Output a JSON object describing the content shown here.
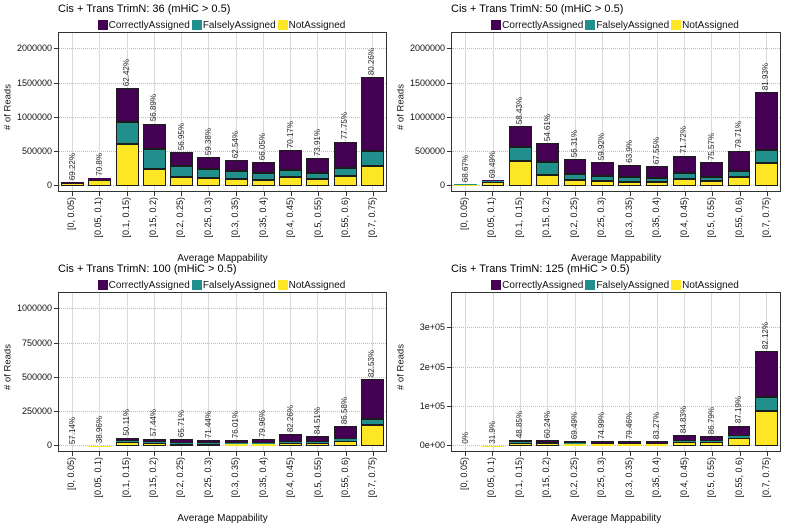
{
  "page": {
    "background": "#ffffff"
  },
  "colors": {
    "correctly_assigned": "#440154",
    "falsely_assigned": "#21908C",
    "not_assigned": "#FDE725",
    "panel_border": "#333333",
    "grid_vertical": "#d9d9d9",
    "grid_horizontal": "#bdbdbd"
  },
  "chart_data": [
    {
      "type": "bar",
      "stacked": true,
      "title": "Cis + Trans TrimN: 36 (mHiC > 0.5)",
      "xlabel": "Average Mappability",
      "ylabel": "# of Reads",
      "legend_position": "top",
      "grid": true,
      "categories": [
        "[0, 0.05)",
        "[0.05, 0.1)",
        "[0.1, 0.15)",
        "[0.15, 0.2)",
        "[0.2, 0.25)",
        "[0.25, 0.3)",
        "[0.3, 0.35)",
        "[0.35, 0.4)",
        "[0.4, 0.45)",
        "[0.5, 0.55)",
        "[0.55, 0.6)",
        "[0.7, 0.75)"
      ],
      "series": [
        {
          "name": "CorrectlyAssigned",
          "color": "#440154",
          "values": [
            6000,
            22000,
            510000,
            375000,
            210000,
            180000,
            165000,
            155000,
            290000,
            210000,
            380000,
            1085000
          ]
        },
        {
          "name": "FalselyAssigned",
          "color": "#21908C",
          "values": [
            4000,
            8000,
            315000,
            290000,
            160000,
            135000,
            115000,
            105000,
            105000,
            90000,
            120000,
            225000
          ]
        },
        {
          "name": "NotAssigned",
          "color": "#FDE725",
          "values": [
            45000,
            85000,
            615000,
            250000,
            130000,
            115000,
            100000,
            90000,
            135000,
            105000,
            150000,
            290000
          ]
        }
      ],
      "bar_labels": [
        "69.22%",
        "70.8%",
        "62.42%",
        "56.89%",
        "56.95%",
        "59.38%",
        "62.54%",
        "66.05%",
        "70.17%",
        "73.91%",
        "77.75%",
        "80.26%"
      ],
      "yticks": [
        0,
        500000,
        1000000,
        1500000,
        2000000
      ],
      "ytick_labels": [
        "0",
        "500000",
        "1000000",
        "1500000",
        "2000000"
      ],
      "ylim": [
        0,
        2240000
      ]
    },
    {
      "type": "bar",
      "stacked": true,
      "title": "Cis + Trans TrimN: 50 (mHiC > 0.5)",
      "xlabel": "Average Mappability",
      "ylabel": "# of Reads",
      "legend_position": "top",
      "grid": true,
      "categories": [
        "[0, 0.05)",
        "[0.05, 0.1)",
        "[0.1, 0.15)",
        "[0.15, 0.2)",
        "[0.2, 0.25)",
        "[0.25, 0.3)",
        "[0.3, 0.35)",
        "[0.35, 0.4)",
        "[0.4, 0.45)",
        "[0.5, 0.55)",
        "[0.55, 0.6)",
        "[0.7, 0.75)"
      ],
      "series": [
        {
          "name": "CorrectlyAssigned",
          "color": "#440154",
          "values": [
            2000,
            18000,
            305000,
            275000,
            215000,
            195000,
            178000,
            170000,
            255000,
            220000,
            305000,
            850000
          ]
        },
        {
          "name": "FalselyAssigned",
          "color": "#21908C",
          "values": [
            3000,
            7000,
            205000,
            185000,
            90000,
            80000,
            70000,
            65000,
            85000,
            67000,
            90000,
            200000
          ]
        },
        {
          "name": "NotAssigned",
          "color": "#FDE725",
          "values": [
            20000,
            65000,
            370000,
            165000,
            85000,
            70000,
            62000,
            55000,
            105000,
            68000,
            125000,
            330000
          ]
        }
      ],
      "bar_labels": [
        "68.67%",
        "69.49%",
        "58.43%",
        "54.61%",
        "56.31%",
        "59.92%",
        "63.9%",
        "67.55%",
        "71.72%",
        "75.57%",
        "79.71%",
        "81.93%"
      ],
      "yticks": [
        0,
        500000,
        1000000,
        1500000,
        2000000
      ],
      "ytick_labels": [
        "0",
        "500000",
        "1000000",
        "1500000",
        "2000000"
      ],
      "ylim": [
        0,
        2240000
      ]
    },
    {
      "type": "bar",
      "stacked": true,
      "title": "Cis + Trans TrimN: 100 (mHiC > 0.5)",
      "xlabel": "Average Mappability",
      "ylabel": "# of Reads",
      "legend_position": "top",
      "grid": true,
      "categories": [
        "[0, 0.05)",
        "[0.05, 0.1)",
        "[0.1, 0.15)",
        "[0.15, 0.2)",
        "[0.2, 0.25)",
        "[0.25, 0.3)",
        "[0.3, 0.35)",
        "[0.35, 0.4)",
        "[0.4, 0.45)",
        "[0.5, 0.55)",
        "[0.55, 0.6)",
        "[0.7, 0.75)"
      ],
      "series": [
        {
          "name": "CorrectlyAssigned",
          "color": "#440154",
          "values": [
            100,
            1000,
            24000,
            26000,
            25000,
            25500,
            26000,
            28500,
            52000,
            48000,
            93000,
            289000
          ]
        },
        {
          "name": "FalselyAssigned",
          "color": "#21908C",
          "values": [
            100,
            500,
            8000,
            7000,
            6000,
            5500,
            5000,
            5500,
            8000,
            7000,
            12000,
            48000
          ]
        },
        {
          "name": "NotAssigned",
          "color": "#FDE725",
          "values": [
            400,
            2500,
            30000,
            22000,
            17000,
            15000,
            14000,
            14000,
            25000,
            20000,
            40000,
            153000
          ]
        }
      ],
      "bar_labels": [
        "57.14%",
        "38.96%",
        "50.11%",
        "57.44%",
        "65.71%",
        "71.44%",
        "76.01%",
        "79.96%",
        "82.26%",
        "84.51%",
        "86.58%",
        "82.53%"
      ],
      "yticks": [
        0,
        250000,
        500000,
        750000,
        1000000
      ],
      "ytick_labels": [
        "0",
        "250000",
        "500000",
        "750000",
        "1000000"
      ],
      "ylim": [
        0,
        1120000
      ]
    },
    {
      "type": "bar",
      "stacked": true,
      "title": "Cis + Trans TrimN: 125 (mHiC > 0.5)",
      "xlabel": "Average Mappability",
      "ylabel": "# of Reads",
      "legend_position": "top",
      "grid": true,
      "categories": [
        "[0, 0.05)",
        "[0.05, 0.1)",
        "[0.1, 0.15)",
        "[0.15, 0.2)",
        "[0.2, 0.25)",
        "[0.25, 0.3)",
        "[0.3, 0.35)",
        "[0.35, 0.4)",
        "[0.4, 0.45)",
        "[0.5, 0.55)",
        "[0.55, 0.6)",
        "[0.7, 0.75)"
      ],
      "series": [
        {
          "name": "CorrectlyAssigned",
          "color": "#440154",
          "values": [
            0,
            300,
            5500,
            6500,
            5800,
            5900,
            6200,
            7200,
            14000,
            14000,
            26500,
            118000
          ]
        },
        {
          "name": "FalselyAssigned",
          "color": "#21908C",
          "values": [
            0,
            100,
            2500,
            2000,
            1700,
            1600,
            1600,
            1800,
            3000,
            3000,
            4500,
            35000
          ]
        },
        {
          "name": "NotAssigned",
          "color": "#FDE725",
          "values": [
            100,
            800,
            8000,
            6500,
            5000,
            4500,
            4200,
            4500,
            10000,
            9000,
            21000,
            89000
          ]
        }
      ],
      "bar_labels": [
        "0%",
        "31.9%",
        "48.85%",
        "60.24%",
        "69.49%",
        "74.99%",
        "79.46%",
        "83.27%",
        "84.83%",
        "86.79%",
        "87.19%",
        "82.12%"
      ],
      "yticks": [
        0,
        100000,
        200000,
        300000
      ],
      "ytick_labels": [
        "0e+00",
        "1e+05",
        "2e+05",
        "3e+05"
      ],
      "ylim": [
        0,
        390000
      ]
    }
  ]
}
